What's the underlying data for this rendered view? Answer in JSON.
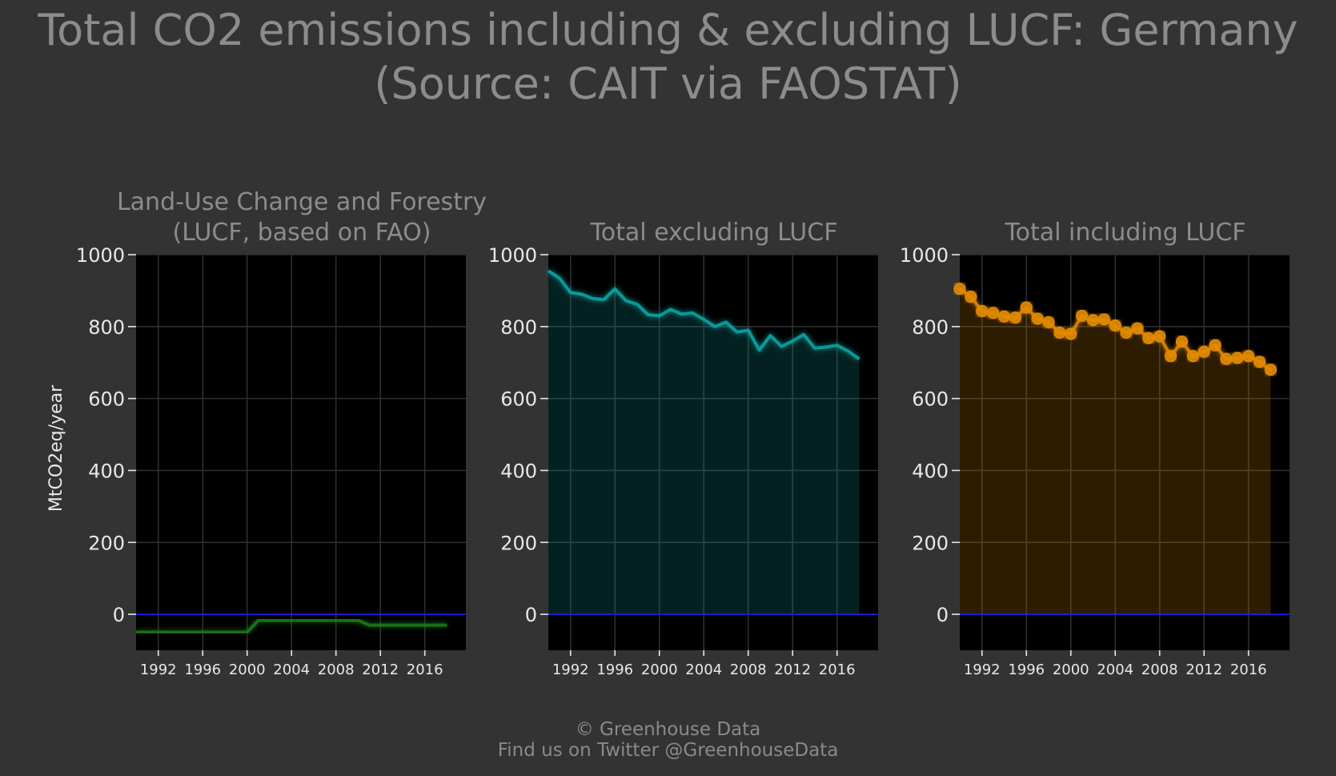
{
  "title_line1": "Total CO2 emissions including & excluding LUCF: Germany",
  "title_line2": "(Source: CAIT via FAOSTAT)",
  "ylabel": "MtCO2eq/year",
  "footer_line1": "© Greenhouse Data",
  "footer_line2": "Find us on Twitter @GreenhouseData",
  "colors": {
    "background": "#333333",
    "plot_bg": "#000000",
    "lucf": "#1f7a14",
    "excl": "#12a5a5",
    "incl": "#e08a00",
    "zero_line": "#1a1aff"
  },
  "chart_data": [
    {
      "type": "line",
      "title_line1": "Land-Use Change and Forestry",
      "title_line2": "(LUCF, based on FAO)",
      "xlim": [
        1990,
        2019.7
      ],
      "ylim": [
        -100,
        1000
      ],
      "xticks": [
        1992,
        1996,
        2000,
        2004,
        2008,
        2012,
        2016
      ],
      "yticks": [
        0,
        200,
        400,
        600,
        800,
        1000
      ],
      "x": [
        1990,
        1991,
        1992,
        1993,
        1994,
        1995,
        1996,
        1997,
        1998,
        1999,
        2000,
        2001,
        2002,
        2003,
        2004,
        2005,
        2006,
        2007,
        2008,
        2009,
        2010,
        2011,
        2012,
        2013,
        2014,
        2015,
        2016,
        2017,
        2018
      ],
      "y": [
        -50,
        -50,
        -50,
        -50,
        -50,
        -50,
        -50,
        -50,
        -50,
        -50,
        -50,
        -17,
        -17,
        -17,
        -17,
        -17,
        -17,
        -17,
        -17,
        -17,
        -17,
        -30,
        -30,
        -30,
        -30,
        -30,
        -30,
        -30,
        -30
      ],
      "style": "step",
      "markers": false,
      "fill": false,
      "grid": true
    },
    {
      "type": "area",
      "title_line1": "Total excluding LUCF",
      "xlim": [
        1990,
        2019.7
      ],
      "ylim": [
        -100,
        1000
      ],
      "xticks": [
        1992,
        1996,
        2000,
        2004,
        2008,
        2012,
        2016
      ],
      "yticks": [
        0,
        200,
        400,
        600,
        800,
        1000
      ],
      "x": [
        1990,
        1991,
        1992,
        1993,
        1994,
        1995,
        1996,
        1997,
        1998,
        1999,
        2000,
        2001,
        2002,
        2003,
        2004,
        2005,
        2006,
        2007,
        2008,
        2009,
        2010,
        2011,
        2012,
        2013,
        2014,
        2015,
        2016,
        2017,
        2018
      ],
      "y": [
        955,
        935,
        895,
        890,
        878,
        875,
        905,
        872,
        862,
        833,
        830,
        848,
        835,
        838,
        820,
        800,
        812,
        785,
        790,
        735,
        775,
        745,
        760,
        778,
        740,
        743,
        748,
        732,
        710
      ],
      "markers": false,
      "fill": true,
      "grid": true
    },
    {
      "type": "area",
      "title_line1": "Total including LUCF",
      "xlim": [
        1990,
        2019.7
      ],
      "ylim": [
        -100,
        1000
      ],
      "xticks": [
        1992,
        1996,
        2000,
        2004,
        2008,
        2012,
        2016
      ],
      "yticks": [
        0,
        200,
        400,
        600,
        800,
        1000
      ],
      "x": [
        1990,
        1991,
        1992,
        1993,
        1994,
        1995,
        1996,
        1997,
        1998,
        1999,
        2000,
        2001,
        2002,
        2003,
        2004,
        2005,
        2006,
        2007,
        2008,
        2009,
        2010,
        2011,
        2012,
        2013,
        2014,
        2015,
        2016,
        2017,
        2018
      ],
      "y": [
        905,
        883,
        843,
        838,
        828,
        825,
        853,
        822,
        812,
        783,
        780,
        830,
        818,
        820,
        803,
        783,
        795,
        768,
        773,
        718,
        758,
        718,
        730,
        748,
        710,
        713,
        718,
        702,
        680
      ],
      "markers": true,
      "fill": true,
      "grid": true
    }
  ]
}
